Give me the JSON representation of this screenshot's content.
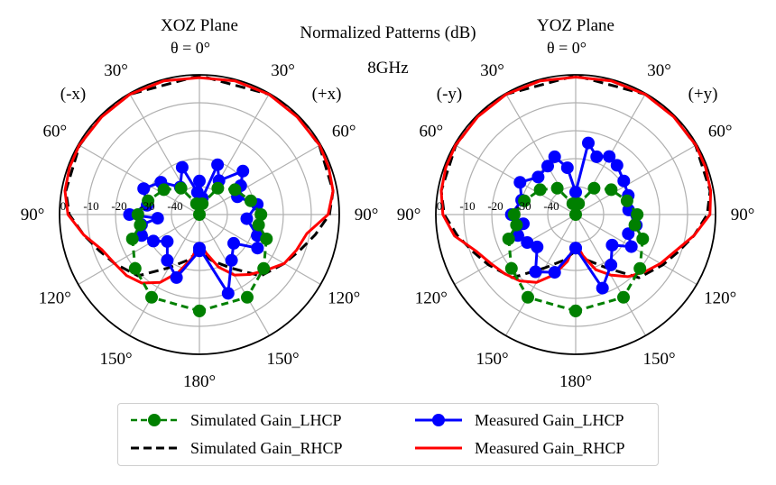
{
  "header": {
    "title": "Normalized Patterns (dB)",
    "frequency": "8GHz"
  },
  "colors": {
    "sim_lhcp": "#008000",
    "sim_rhcp": "#000000",
    "meas_lhcp": "#0000ff",
    "meas_rhcp": "#ff0000",
    "grid": "#b0b0b0"
  },
  "chart_data": [
    {
      "type": "polar",
      "title": "XOZ Plane",
      "theta_label": "θ = 0°",
      "left_direction": "(-x)",
      "right_direction": "(+x)",
      "radial_range_db": [
        -50,
        0
      ],
      "radial_ticks": [
        "0",
        "-10",
        "-20",
        "-30",
        "-40"
      ],
      "angle_ticks": {
        "left": [
          "30°",
          "60°",
          "90°",
          "120°",
          "150°"
        ],
        "right": [
          "30°",
          "60°",
          "90°",
          "120°",
          "150°"
        ],
        "bottom": "180°"
      },
      "grid": true,
      "series": [
        {
          "name": "Simulated Gain_LHCP",
          "style": "dashed-marker",
          "theta_deg": [
            -180,
            -150,
            -130,
            -110,
            -100,
            -90,
            -75,
            -55,
            -35,
            -15,
            0,
            15,
            35,
            55,
            75,
            90,
            100,
            110,
            130,
            150,
            180
          ],
          "values": [
            -15.5,
            -15.8,
            -20,
            -24.5,
            -28.5,
            -28,
            -31,
            -34.5,
            -38.5,
            -46,
            -50,
            -46,
            -38.5,
            -34.5,
            -31,
            -28,
            -28.5,
            -24.5,
            -20,
            -15.8,
            -15.5
          ]
        },
        {
          "name": "Simulated Gain_RHCP",
          "style": "dashed",
          "theta_deg": [
            -180,
            -165,
            -150,
            -135,
            -120,
            -110,
            -100,
            -90,
            -80,
            -60,
            -45,
            -30,
            0,
            30,
            45,
            60,
            80,
            90,
            100,
            110,
            120,
            135,
            150,
            165,
            180
          ],
          "values": [
            -37,
            -33,
            -28,
            -19,
            -15,
            -12,
            -8,
            -3.5,
            -1.5,
            -0.5,
            -0.3,
            -0.3,
            -0.3,
            -0.3,
            -0.3,
            -0.5,
            -1.5,
            -3.5,
            -8,
            -12,
            -15,
            -19,
            -28,
            -33,
            -37
          ]
        },
        {
          "name": "Measured Gain_LHCP",
          "style": "solid-marker",
          "theta_deg": [
            -180,
            -160,
            -145,
            -130,
            -120,
            -110,
            -100,
            -95,
            -90,
            -80,
            -65,
            -50,
            -35,
            -20,
            -5,
            0,
            10,
            20,
            30,
            45,
            55,
            65,
            80,
            95,
            110,
            120,
            130,
            145,
            160,
            180
          ],
          "values": [
            -37,
            -26,
            -30,
            -35,
            -31,
            -28,
            -29,
            -35,
            -25,
            -31,
            -28,
            -32,
            -38,
            -32,
            -42,
            -38,
            -44,
            -31,
            -36,
            -28,
            -32,
            -35,
            -29,
            -33,
            -28,
            -26,
            -34,
            -30,
            -20,
            -38
          ]
        },
        {
          "name": "Measured Gain_RHCP",
          "style": "solid",
          "theta_deg": [
            -180,
            -170,
            -160,
            -150,
            -140,
            -130,
            -120,
            -110,
            -100,
            -90,
            -80,
            -70,
            -60,
            -45,
            -30,
            -15,
            0,
            15,
            30,
            45,
            60,
            70,
            80,
            90,
            100,
            110,
            120,
            130,
            140,
            150,
            160,
            170,
            180
          ],
          "values": [
            -40,
            -34,
            -28,
            -22,
            -18,
            -16,
            -15,
            -13,
            -8,
            -3,
            -1.2,
            -0.6,
            -0.4,
            -0.6,
            -0.3,
            -0.5,
            -1,
            -0.5,
            -0.3,
            -0.6,
            -0.4,
            -0.8,
            -1.5,
            -4,
            -11,
            -13,
            -15,
            -19,
            -22,
            -25,
            -30,
            -36,
            -40
          ]
        }
      ]
    },
    {
      "type": "polar",
      "title": "YOZ Plane",
      "theta_label": "θ = 0°",
      "left_direction": "(-y)",
      "right_direction": "(+y)",
      "radial_range_db": [
        -50,
        0
      ],
      "radial_ticks": [
        "0",
        "-10",
        "-20",
        "-30",
        "-40"
      ],
      "angle_ticks": {
        "left": [
          "30°",
          "60°",
          "90°",
          "120°",
          "150°"
        ],
        "right": [
          "30°",
          "60°",
          "90°",
          "120°",
          "150°"
        ],
        "bottom": "180°"
      },
      "grid": true,
      "series": [
        {
          "name": "Simulated Gain_LHCP",
          "style": "dashed-marker",
          "theta_deg": [
            -180,
            -150,
            -130,
            -110,
            -100,
            -90,
            -75,
            -55,
            -35,
            -15,
            0,
            15,
            35,
            55,
            75,
            90,
            100,
            110,
            130,
            150,
            180
          ],
          "values": [
            -15.5,
            -15.8,
            -20,
            -24.5,
            -28.5,
            -28,
            -31,
            -34.5,
            -38.5,
            -46,
            -50,
            -46,
            -38.5,
            -34.5,
            -31,
            -28,
            -28.5,
            -24.5,
            -20,
            -15.8,
            -15.5
          ]
        },
        {
          "name": "Simulated Gain_RHCP",
          "style": "dashed",
          "theta_deg": [
            -180,
            -165,
            -150,
            -135,
            -120,
            -110,
            -100,
            -90,
            -80,
            -60,
            -45,
            -30,
            0,
            30,
            45,
            60,
            80,
            90,
            100,
            110,
            120,
            135,
            150,
            165,
            180
          ],
          "values": [
            -37,
            -33,
            -28,
            -18,
            -14,
            -11,
            -7,
            -3,
            -1.2,
            -0.5,
            -0.3,
            -0.3,
            -0.3,
            -0.3,
            -0.3,
            -0.5,
            -1.2,
            -3,
            -7,
            -11,
            -14,
            -18,
            -28,
            -33,
            -37
          ]
        },
        {
          "name": "Measured Gain_LHCP",
          "style": "solid-marker",
          "theta_deg": [
            -180,
            -160,
            -145,
            -130,
            -120,
            -110,
            -100,
            -90,
            -75,
            -60,
            -45,
            -30,
            -20,
            -10,
            0,
            10,
            20,
            30,
            40,
            55,
            70,
            85,
            100,
            110,
            120,
            130,
            145,
            160,
            180
          ],
          "values": [
            -38,
            -28,
            -25,
            -32,
            -30,
            -28,
            -31,
            -27,
            -30,
            -27,
            -31,
            -30,
            -28,
            -33,
            -42,
            -24,
            -28,
            -26,
            -27,
            -29,
            -30,
            -31,
            -28,
            -30,
            -27,
            -33,
            -28,
            -22,
            -38
          ]
        },
        {
          "name": "Measured Gain_RHCP",
          "style": "solid",
          "theta_deg": [
            -180,
            -170,
            -160,
            -150,
            -140,
            -130,
            -120,
            -110,
            -100,
            -90,
            -80,
            -70,
            -60,
            -45,
            -30,
            -15,
            0,
            15,
            30,
            45,
            60,
            70,
            80,
            90,
            100,
            110,
            120,
            130,
            140,
            150,
            160,
            170,
            180
          ],
          "values": [
            -40,
            -33,
            -27,
            -22,
            -19,
            -17,
            -15,
            -12,
            -6,
            -2.5,
            -1.2,
            -0.6,
            -0.4,
            -0.5,
            -0.3,
            -0.5,
            -0.8,
            -0.5,
            -0.3,
            -0.5,
            -0.4,
            -0.6,
            -1,
            -2,
            -7,
            -12,
            -15,
            -18,
            -21,
            -25,
            -29,
            -35,
            -40
          ]
        }
      ]
    }
  ],
  "legend": {
    "items": [
      {
        "label": "Simulated Gain_LHCP",
        "key": "sim_lhcp"
      },
      {
        "label": "Simulated Gain_RHCP",
        "key": "sim_rhcp"
      },
      {
        "label": "Measured Gain_LHCP",
        "key": "meas_lhcp"
      },
      {
        "label": "Measured Gain_RHCP",
        "key": "meas_rhcp"
      }
    ]
  }
}
